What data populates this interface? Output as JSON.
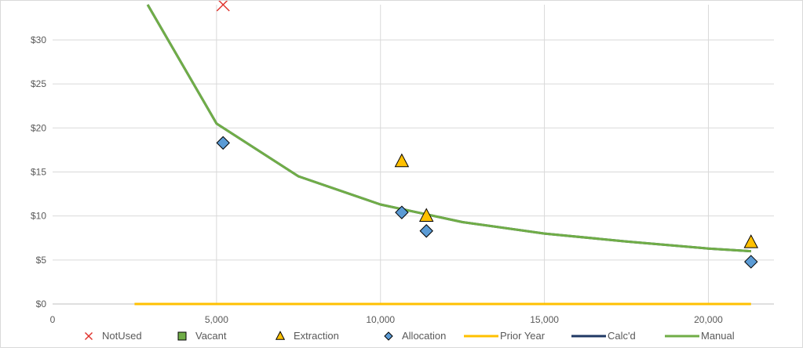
{
  "chart_data": {
    "type": "scatter",
    "xlim": [
      0,
      22000
    ],
    "ylim": [
      0,
      34
    ],
    "x_ticks": [
      {
        "value": 0,
        "label": "0"
      },
      {
        "value": 5000,
        "label": "5,000"
      },
      {
        "value": 10000,
        "label": "10,000"
      },
      {
        "value": 15000,
        "label": "15,000"
      },
      {
        "value": 20000,
        "label": "20,000"
      }
    ],
    "y_ticks": [
      {
        "value": 0,
        "label": "$0"
      },
      {
        "value": 5,
        "label": "$5"
      },
      {
        "value": 10,
        "label": "$10"
      },
      {
        "value": 15,
        "label": "$15"
      },
      {
        "value": 20,
        "label": "$20"
      },
      {
        "value": 25,
        "label": "$25"
      },
      {
        "value": 30,
        "label": "$30"
      }
    ],
    "grid": true,
    "legend_position": "bottom",
    "series": [
      {
        "name": "NotUsed",
        "kind": "marker",
        "marker": "x",
        "color": "#e0302a",
        "points": [
          [
            5200,
            34
          ]
        ]
      },
      {
        "name": "Vacant",
        "kind": "marker",
        "marker": "square",
        "color": "#70ad47",
        "points": []
      },
      {
        "name": "Extraction",
        "kind": "marker",
        "marker": "triangle",
        "color": "#ffc000",
        "points": [
          [
            10650,
            16.2
          ],
          [
            11400,
            10.0
          ],
          [
            21300,
            7.0
          ]
        ]
      },
      {
        "name": "Allocation",
        "kind": "marker",
        "marker": "diamond",
        "color": "#5b9bd5",
        "points": [
          [
            5200,
            18.3
          ],
          [
            10650,
            10.4
          ],
          [
            11400,
            8.3
          ],
          [
            21300,
            4.8
          ]
        ]
      },
      {
        "name": "Prior Year",
        "kind": "line",
        "color": "#ffc000",
        "points": [
          [
            2500,
            0
          ],
          [
            21300,
            0
          ]
        ]
      },
      {
        "name": "Calc'd",
        "kind": "line",
        "color": "#1f3864",
        "points": [
          [
            2900,
            34
          ],
          [
            5000,
            20.5
          ],
          [
            7500,
            14.5
          ],
          [
            10000,
            11.3
          ],
          [
            12500,
            9.3
          ],
          [
            15000,
            8.0
          ],
          [
            17500,
            7.1
          ],
          [
            20000,
            6.3
          ],
          [
            21300,
            6.0
          ]
        ]
      },
      {
        "name": "Manual",
        "kind": "line",
        "color": "#70ad47",
        "points": [
          [
            2900,
            34
          ],
          [
            5000,
            20.5
          ],
          [
            7500,
            14.5
          ],
          [
            10000,
            11.3
          ],
          [
            12500,
            9.3
          ],
          [
            15000,
            8.0
          ],
          [
            17500,
            7.1
          ],
          [
            20000,
            6.3
          ],
          [
            21300,
            6.0
          ]
        ]
      }
    ]
  }
}
